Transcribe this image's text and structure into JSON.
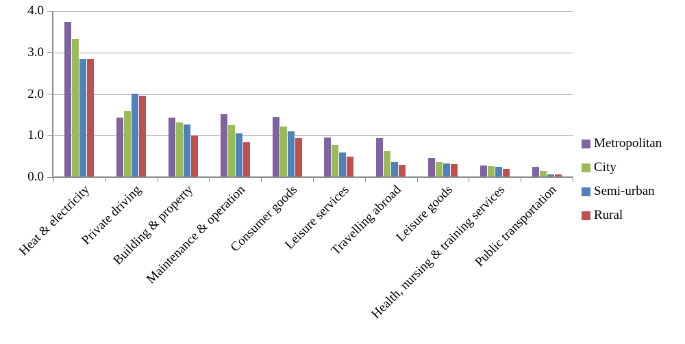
{
  "chart_data": {
    "type": "bar",
    "title": "",
    "xlabel": "",
    "ylabel": "",
    "ylim": [
      0,
      4
    ],
    "y_tick_labels": [
      "0.0",
      "1.0",
      "2.0",
      "3.0",
      "4.0"
    ],
    "grid": true,
    "legend_position": "right",
    "axis_color": "#8c8c8c",
    "gridline_color": "#a6a6a6",
    "categories": [
      "Heat & electricity",
      "Private driving",
      "Building & property",
      "Maintenance & operation",
      "Consumer goods",
      "Leisure services",
      "Travelling abroad",
      "Leisure goods",
      "Health, nursing & training services",
      "Public transportation"
    ],
    "series": [
      {
        "name": "Metropolitan",
        "color": "#8064A2",
        "values": [
          3.74,
          1.44,
          1.43,
          1.51,
          1.45,
          0.96,
          0.94,
          0.46,
          0.28,
          0.24
        ]
      },
      {
        "name": "City",
        "color": "#9BBB59",
        "values": [
          3.33,
          1.6,
          1.31,
          1.25,
          1.22,
          0.77,
          0.62,
          0.36,
          0.26,
          0.15
        ]
      },
      {
        "name": "Semi-urban",
        "color": "#4F81BD",
        "values": [
          2.85,
          2.01,
          1.27,
          1.05,
          1.1,
          0.6,
          0.37,
          0.33,
          0.24,
          0.06
        ]
      },
      {
        "name": "Rural",
        "color": "#C0504D",
        "values": [
          2.85,
          1.96,
          1.0,
          0.84,
          0.94,
          0.49,
          0.3,
          0.31,
          0.2,
          0.06
        ]
      }
    ]
  }
}
